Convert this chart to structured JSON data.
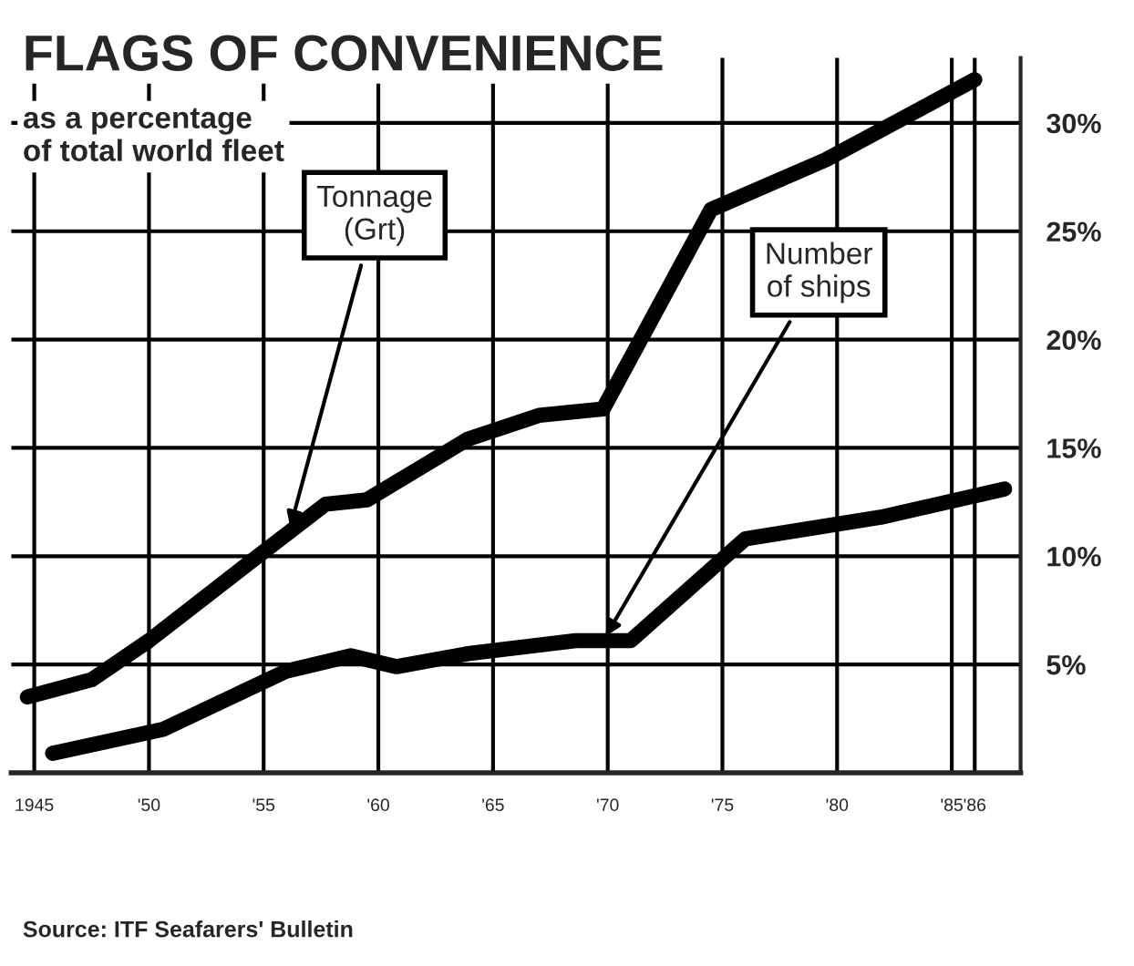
{
  "chart_data": {
    "type": "line",
    "title": "FLAGS OF CONVENIENCE",
    "subtitle": "as a percentage\nof total world fleet",
    "series": [
      {
        "name": "Tonnage\n(Grt)",
        "color": "#000000",
        "x": [
          1944.7,
          1947.5,
          1950,
          1954.5,
          1957.7,
          1959.5,
          1963.9,
          1967,
          1969.8,
          1974.5,
          1979.5,
          1986
        ],
        "values": [
          3.5,
          4.3,
          6.1,
          9.8,
          12.4,
          12.6,
          15.4,
          16.5,
          16.8,
          26,
          28.3,
          32
        ]
      },
      {
        "name": "Number\nof ships",
        "color": "#000000",
        "x": [
          1945.8,
          1950.6,
          1956,
          1958.8,
          1960.8,
          1963.9,
          1968.6,
          1971,
          1976,
          1981.9,
          1987.3
        ],
        "values": [
          0.9,
          2.0,
          4.7,
          5.4,
          4.9,
          5.5,
          6.1,
          6.1,
          10.8,
          11.8,
          13.1
        ]
      }
    ],
    "xlim": [
      1944,
      1988
    ],
    "ylim": [
      0,
      33
    ],
    "xticks": [
      {
        "value": 1945,
        "label": "1945"
      },
      {
        "value": 1950,
        "label": "'50"
      },
      {
        "value": 1955,
        "label": "'55"
      },
      {
        "value": 1960,
        "label": "'60"
      },
      {
        "value": 1965,
        "label": "'65"
      },
      {
        "value": 1970,
        "label": "'70"
      },
      {
        "value": 1975,
        "label": "'75"
      },
      {
        "value": 1980,
        "label": "'80"
      },
      {
        "value": 1985,
        "label": "'85"
      },
      {
        "value": 1986,
        "label": "'86"
      }
    ],
    "yticks": [
      {
        "value": 5,
        "label": "5%"
      },
      {
        "value": 10,
        "label": "10%"
      },
      {
        "value": 15,
        "label": "15%"
      },
      {
        "value": 20,
        "label": "20%"
      },
      {
        "value": 25,
        "label": "25%"
      },
      {
        "value": 30,
        "label": "30%"
      }
    ],
    "grid": true,
    "legend": false,
    "line_style": "solid",
    "marker": "none",
    "annotations": [
      "Source: ITF Seafarers' Bulletin"
    ]
  }
}
